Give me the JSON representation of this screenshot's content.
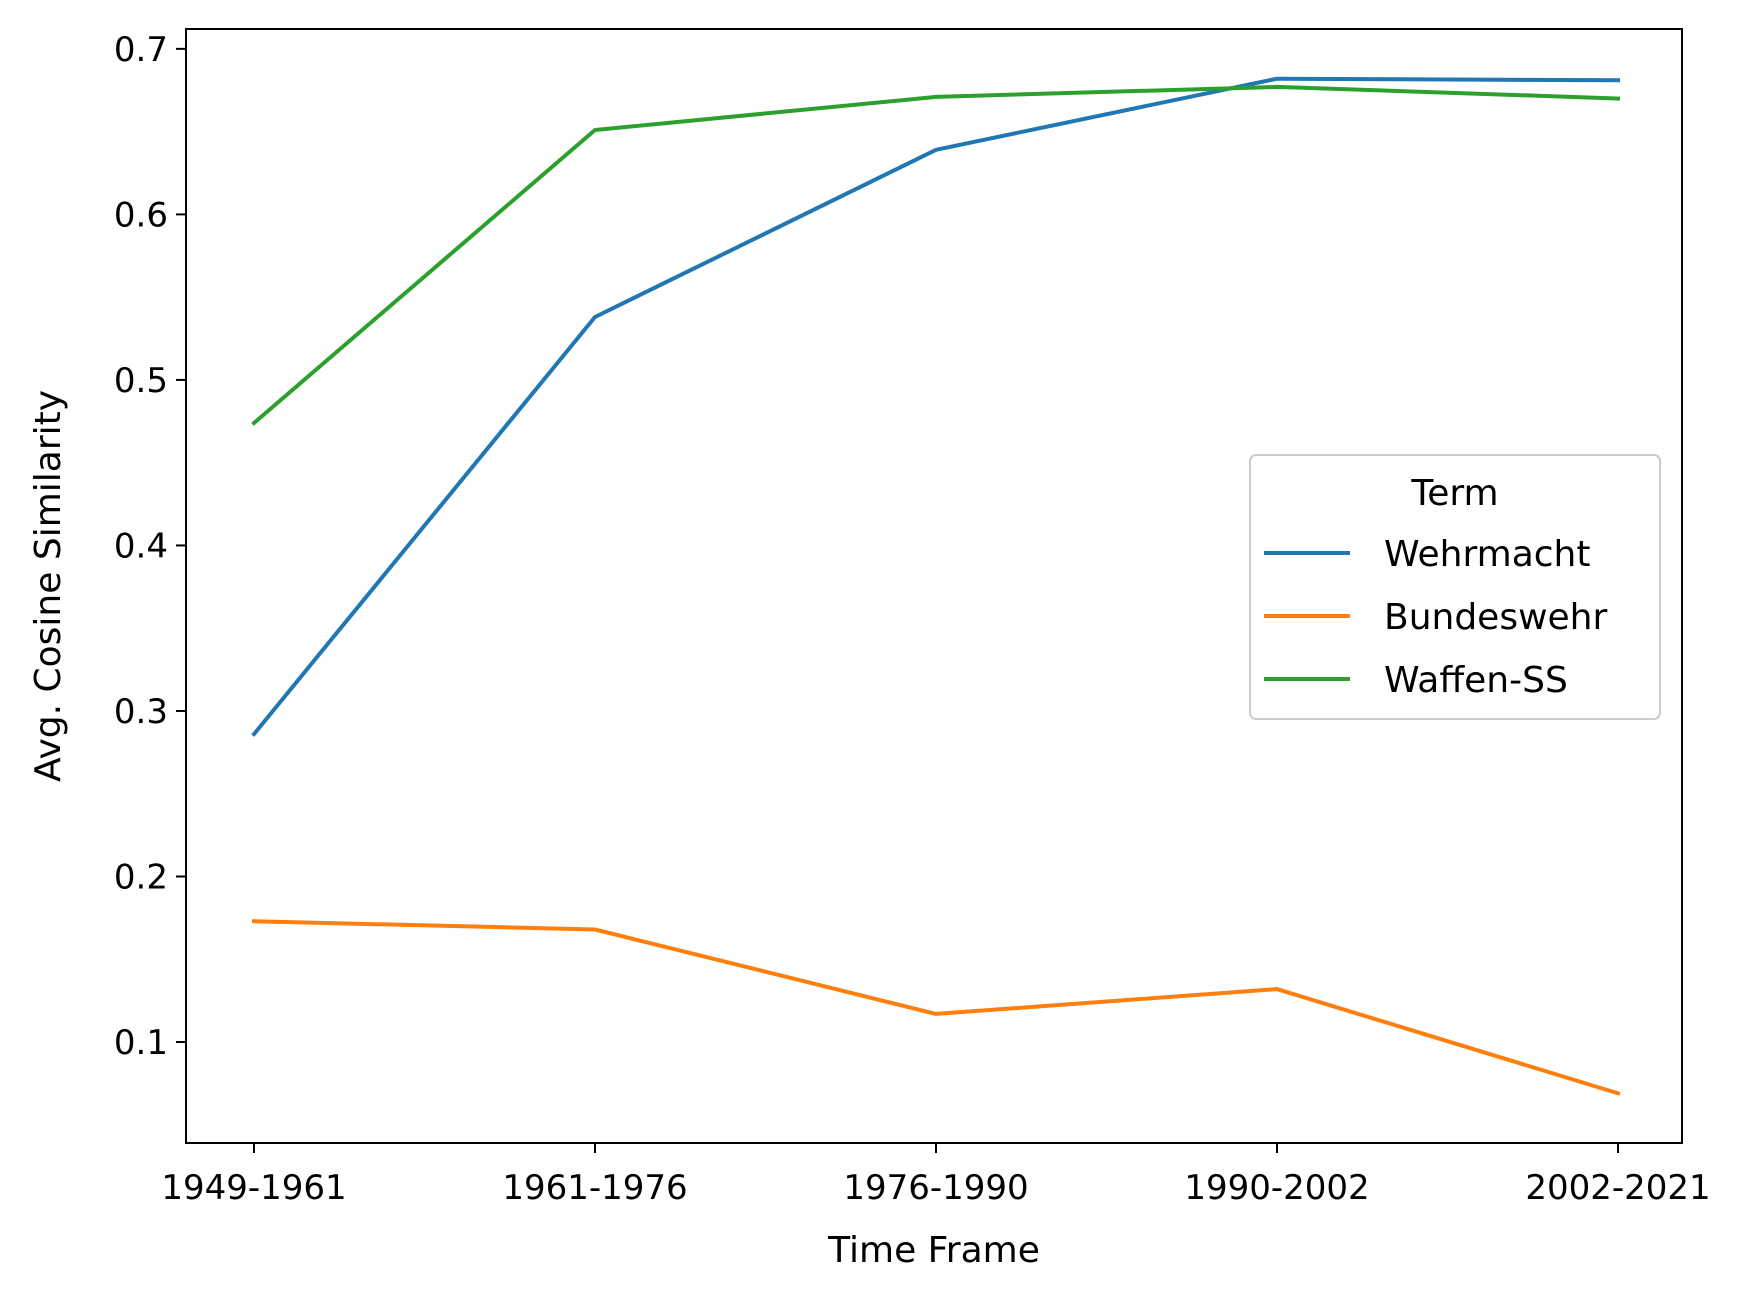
{
  "chart_data": {
    "type": "line",
    "categories": [
      "1949-1961",
      "1961-1976",
      "1976-1990",
      "1990-2002",
      "2002-2021"
    ],
    "series": [
      {
        "name": "Wehrmacht",
        "color": "#1f77b4",
        "values": [
          0.286,
          0.538,
          0.639,
          0.682,
          0.681
        ]
      },
      {
        "name": "Bundeswehr",
        "color": "#ff7f0e",
        "values": [
          0.173,
          0.168,
          0.117,
          0.132,
          0.069
        ]
      },
      {
        "name": "Waffen-SS",
        "color": "#2ca02c",
        "values": [
          0.474,
          0.651,
          0.671,
          0.677,
          0.67
        ]
      }
    ],
    "xlabel": "Time Frame",
    "ylabel": "Avg. Cosine Similarity",
    "ylim": [
      0.039,
      0.712
    ],
    "yticks": [
      "0.1",
      "0.2",
      "0.3",
      "0.4",
      "0.5",
      "0.6",
      "0.7"
    ],
    "grid": false,
    "legend": {
      "title": "Term",
      "placement": "center-right"
    }
  }
}
